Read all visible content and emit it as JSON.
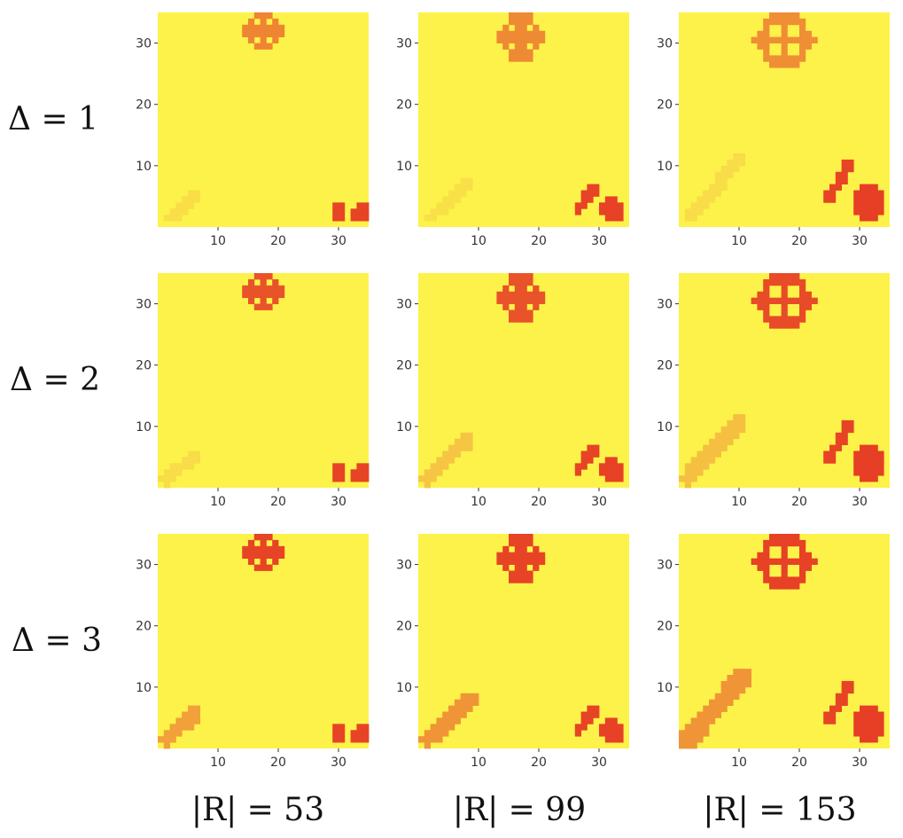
{
  "figure": {
    "row_labels": [
      "Δ = 1",
      "Δ = 2",
      "Δ = 3"
    ],
    "col_labels": [
      "|R| = 53",
      "|R| = 99",
      "|R| = 153"
    ]
  },
  "colors": {
    "background": "#fdf24a",
    "ramp": [
      "#fdf24a",
      "#f8dc48",
      "#f4b63f",
      "#ef8a34",
      "#ea5a2a",
      "#e63c25"
    ]
  },
  "chart_data": [
    {
      "type": "heatmap",
      "row": "Δ = 1",
      "col": "|R| = 53",
      "xlim": [
        0,
        35
      ],
      "ylim": [
        0,
        35
      ],
      "xticks": [
        10,
        20,
        30
      ],
      "yticks": [
        10,
        20,
        30
      ],
      "grid": false,
      "features": [
        {
          "shape": "ring",
          "cx": 17.5,
          "cy": 32,
          "rx": 2.2,
          "ry": 3.2,
          "level": 0.62,
          "cross": true
        },
        {
          "shape": "streak",
          "x0": 2,
          "y0": 1.5,
          "x1": 6,
          "y1": 5,
          "w": 1.0,
          "level": 0.18
        },
        {
          "shape": "blob",
          "cx": 30,
          "cy": 2.6,
          "rx": 1.2,
          "ry": 1.4,
          "level": 0.95
        },
        {
          "shape": "blob",
          "cx": 33.6,
          "cy": 2.2,
          "rx": 1.6,
          "ry": 1.6,
          "level": 0.95
        }
      ]
    },
    {
      "type": "heatmap",
      "row": "Δ = 1",
      "col": "|R| = 99",
      "xlim": [
        0,
        35
      ],
      "ylim": [
        0,
        35
      ],
      "xticks": [
        10,
        20,
        30
      ],
      "yticks": [
        10,
        20,
        30
      ],
      "grid": false,
      "features": [
        {
          "shape": "ring",
          "cx": 17,
          "cy": 31,
          "rx": 3.0,
          "ry": 3.8,
          "level": 0.6,
          "cross": true
        },
        {
          "shape": "streak",
          "x0": 2,
          "y0": 1.5,
          "x1": 8,
          "y1": 7,
          "w": 1.0,
          "level": 0.16
        },
        {
          "shape": "streak",
          "x0": 26.5,
          "y0": 3,
          "x1": 29,
          "y1": 6,
          "w": 0.9,
          "level": 0.95
        },
        {
          "shape": "blob",
          "cx": 32.3,
          "cy": 2.8,
          "rx": 2.1,
          "ry": 2.0,
          "level": 0.97
        }
      ]
    },
    {
      "type": "heatmap",
      "row": "Δ = 1",
      "col": "|R| = 153",
      "xlim": [
        0,
        35
      ],
      "ylim": [
        0,
        35
      ],
      "xticks": [
        10,
        20,
        30
      ],
      "yticks": [
        10,
        20,
        30
      ],
      "grid": false,
      "features": [
        {
          "shape": "ring",
          "cx": 17.5,
          "cy": 30.5,
          "rx": 4.2,
          "ry": 4.5,
          "level": 0.58,
          "cross": true
        },
        {
          "shape": "streak",
          "x0": 2,
          "y0": 1.5,
          "x1": 10,
          "y1": 11,
          "w": 1.1,
          "level": 0.2
        },
        {
          "shape": "streak",
          "x0": 25,
          "y0": 5,
          "x1": 28.5,
          "y1": 10.5,
          "w": 0.9,
          "level": 0.95
        },
        {
          "shape": "blob",
          "cx": 31.5,
          "cy": 3.8,
          "rx": 3.0,
          "ry": 3.0,
          "level": 0.98
        }
      ]
    },
    {
      "type": "heatmap",
      "row": "Δ = 2",
      "col": "|R| = 53",
      "xlim": [
        0,
        35
      ],
      "ylim": [
        0,
        35
      ],
      "xticks": [
        10,
        20,
        30
      ],
      "yticks": [
        10,
        20,
        30
      ],
      "grid": false,
      "features": [
        {
          "shape": "ring",
          "cx": 17.5,
          "cy": 32,
          "rx": 2.2,
          "ry": 3.2,
          "level": 0.85,
          "cross": true
        },
        {
          "shape": "streak",
          "x0": 1.5,
          "y0": 1.5,
          "x1": 6,
          "y1": 5,
          "w": 1.0,
          "level": 0.2
        },
        {
          "shape": "blob",
          "cx": 30,
          "cy": 2.6,
          "rx": 1.2,
          "ry": 1.4,
          "level": 0.95
        },
        {
          "shape": "blob",
          "cx": 33.6,
          "cy": 2.2,
          "rx": 1.6,
          "ry": 1.6,
          "level": 0.95
        }
      ]
    },
    {
      "type": "heatmap",
      "row": "Δ = 2",
      "col": "|R| = 99",
      "xlim": [
        0,
        35
      ],
      "ylim": [
        0,
        35
      ],
      "xticks": [
        10,
        20,
        30
      ],
      "yticks": [
        10,
        20,
        30
      ],
      "grid": false,
      "features": [
        {
          "shape": "ring",
          "cx": 17,
          "cy": 31,
          "rx": 3.0,
          "ry": 3.8,
          "level": 0.85,
          "cross": true
        },
        {
          "shape": "streak",
          "x0": 1.5,
          "y0": 1.5,
          "x1": 8.5,
          "y1": 8,
          "w": 1.1,
          "level": 0.32
        },
        {
          "shape": "streak",
          "x0": 26.5,
          "y0": 3,
          "x1": 29,
          "y1": 6,
          "w": 0.9,
          "level": 0.95
        },
        {
          "shape": "blob",
          "cx": 32.3,
          "cy": 2.8,
          "rx": 2.1,
          "ry": 2.0,
          "level": 0.97
        }
      ]
    },
    {
      "type": "heatmap",
      "row": "Δ = 2",
      "col": "|R| = 153",
      "xlim": [
        0,
        35
      ],
      "ylim": [
        0,
        35
      ],
      "xticks": [
        10,
        20,
        30
      ],
      "yticks": [
        10,
        20,
        30
      ],
      "grid": false,
      "features": [
        {
          "shape": "ring",
          "cx": 17.5,
          "cy": 30.5,
          "rx": 4.2,
          "ry": 4.5,
          "level": 0.9,
          "cross": true
        },
        {
          "shape": "streak",
          "x0": 1.5,
          "y0": 1.5,
          "x1": 10,
          "y1": 11,
          "w": 1.4,
          "level": 0.35
        },
        {
          "shape": "streak",
          "x0": 25,
          "y0": 5,
          "x1": 28.5,
          "y1": 10.5,
          "w": 0.9,
          "level": 0.95
        },
        {
          "shape": "blob",
          "cx": 31.5,
          "cy": 3.8,
          "rx": 3.0,
          "ry": 3.0,
          "level": 0.98
        }
      ]
    },
    {
      "type": "heatmap",
      "row": "Δ = 3",
      "col": "|R| = 53",
      "xlim": [
        0,
        35
      ],
      "ylim": [
        0,
        35
      ],
      "xticks": [
        10,
        20,
        30
      ],
      "yticks": [
        10,
        20,
        30
      ],
      "grid": false,
      "features": [
        {
          "shape": "ring",
          "cx": 17.5,
          "cy": 32,
          "rx": 2.2,
          "ry": 3.2,
          "level": 0.95,
          "cross": true
        },
        {
          "shape": "streak",
          "x0": 1.5,
          "y0": 1.5,
          "x1": 6,
          "y1": 5.5,
          "w": 1.2,
          "level": 0.5
        },
        {
          "shape": "blob",
          "cx": 30,
          "cy": 2.6,
          "rx": 1.2,
          "ry": 1.4,
          "level": 0.95
        },
        {
          "shape": "blob",
          "cx": 33.6,
          "cy": 2.2,
          "rx": 1.6,
          "ry": 1.6,
          "level": 0.95
        }
      ]
    },
    {
      "type": "heatmap",
      "row": "Δ = 3",
      "col": "|R| = 99",
      "xlim": [
        0,
        35
      ],
      "ylim": [
        0,
        35
      ],
      "xticks": [
        10,
        20,
        30
      ],
      "yticks": [
        10,
        20,
        30
      ],
      "grid": false,
      "features": [
        {
          "shape": "ring",
          "cx": 17,
          "cy": 31,
          "rx": 3.0,
          "ry": 3.8,
          "level": 0.95,
          "cross": true
        },
        {
          "shape": "streak",
          "x0": 1.5,
          "y0": 1.5,
          "x1": 8.5,
          "y1": 8,
          "w": 1.4,
          "level": 0.55
        },
        {
          "shape": "streak",
          "x0": 26.5,
          "y0": 3,
          "x1": 29,
          "y1": 6,
          "w": 0.9,
          "level": 0.95
        },
        {
          "shape": "blob",
          "cx": 32.3,
          "cy": 2.8,
          "rx": 2.1,
          "ry": 2.0,
          "level": 0.97
        }
      ]
    },
    {
      "type": "heatmap",
      "row": "Δ = 3",
      "col": "|R| = 153",
      "xlim": [
        0,
        35
      ],
      "ylim": [
        0,
        35
      ],
      "xticks": [
        10,
        20,
        30
      ],
      "yticks": [
        10,
        20,
        30
      ],
      "grid": false,
      "features": [
        {
          "shape": "ring",
          "cx": 17.5,
          "cy": 30.5,
          "rx": 4.2,
          "ry": 4.5,
          "level": 0.97,
          "cross": true
        },
        {
          "shape": "streak",
          "x0": 1.5,
          "y0": 1.5,
          "x1": 10.5,
          "y1": 11.5,
          "w": 1.6,
          "level": 0.55
        },
        {
          "shape": "streak",
          "x0": 25,
          "y0": 5,
          "x1": 28.5,
          "y1": 10.5,
          "w": 0.9,
          "level": 0.95
        },
        {
          "shape": "blob",
          "cx": 31.5,
          "cy": 3.8,
          "rx": 3.0,
          "ry": 3.0,
          "level": 0.98
        }
      ]
    }
  ]
}
